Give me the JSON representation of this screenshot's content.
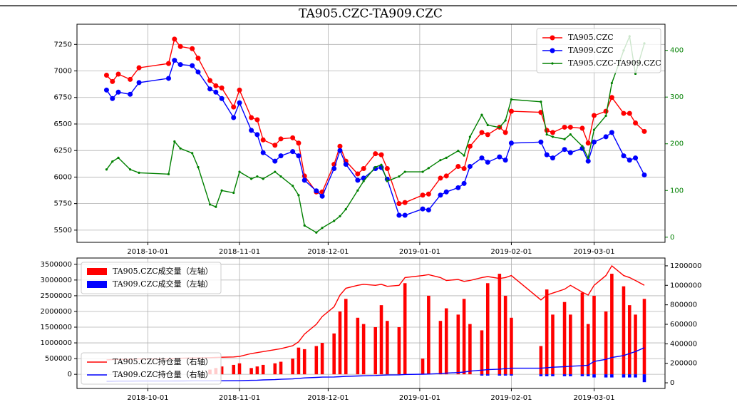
{
  "chart_data": [
    {
      "type": "line",
      "title": "TA905.CZC-TA909.CZC",
      "x": [
        "2018-09-17",
        "2018-09-19",
        "2018-09-21",
        "2018-09-25",
        "2018-09-28",
        "2018-10-08",
        "2018-10-10",
        "2018-10-12",
        "2018-10-16",
        "2018-10-18",
        "2018-10-22",
        "2018-10-24",
        "2018-10-26",
        "2018-10-30",
        "2018-11-01",
        "2018-11-05",
        "2018-11-07",
        "2018-11-09",
        "2018-11-13",
        "2018-11-15",
        "2018-11-19",
        "2018-11-21",
        "2018-11-23",
        "2018-11-27",
        "2018-11-29",
        "2018-12-03",
        "2018-12-05",
        "2018-12-07",
        "2018-12-11",
        "2018-12-13",
        "2018-12-17",
        "2018-12-19",
        "2018-12-21",
        "2018-12-25",
        "2018-12-27",
        "2019-01-02",
        "2019-01-04",
        "2019-01-08",
        "2019-01-10",
        "2019-01-14",
        "2019-01-16",
        "2019-01-18",
        "2019-01-22",
        "2019-01-24",
        "2019-01-28",
        "2019-01-30",
        "2019-02-01",
        "2019-02-11",
        "2019-02-13",
        "2019-02-15",
        "2019-02-19",
        "2019-02-21",
        "2019-02-25",
        "2019-02-27",
        "2019-03-01",
        "2019-03-05",
        "2019-03-07",
        "2019-03-11",
        "2019-03-13",
        "2019-03-15",
        "2019-03-18"
      ],
      "series": [
        {
          "name": "TA905.CZC",
          "color": "#ff0000",
          "axis": "y",
          "marker": 3.5,
          "values": [
            6960,
            6900,
            6970,
            6920,
            7030,
            7070,
            7300,
            7230,
            7210,
            7120,
            6910,
            6860,
            6840,
            6660,
            6820,
            6560,
            6540,
            6350,
            6300,
            6360,
            6370,
            6320,
            6010,
            5860,
            5860,
            6120,
            6290,
            6150,
            6030,
            6080,
            6220,
            6210,
            6080,
            5750,
            5760,
            5830,
            5840,
            5990,
            6010,
            6100,
            6080,
            6290,
            6420,
            6400,
            6470,
            6420,
            6620,
            6610,
            6440,
            6420,
            6470,
            6470,
            6460,
            6320,
            6580,
            6620,
            6750,
            6600,
            6600,
            6510,
            6430
          ]
        },
        {
          "name": "TA909.CZC",
          "color": "#0000ff",
          "axis": "y",
          "marker": 3.5,
          "values": [
            6820,
            6740,
            6800,
            6780,
            6890,
            6930,
            7100,
            7060,
            7050,
            6990,
            6830,
            6800,
            6740,
            6560,
            6700,
            6440,
            6400,
            6230,
            6150,
            6200,
            6240,
            6200,
            5970,
            5870,
            5820,
            6080,
            6250,
            6120,
            5970,
            5990,
            6080,
            6090,
            5980,
            5640,
            5640,
            5700,
            5690,
            5830,
            5860,
            5900,
            5940,
            6100,
            6180,
            6140,
            6190,
            6160,
            6320,
            6330,
            6210,
            6180,
            6260,
            6230,
            6270,
            6150,
            6330,
            6380,
            6420,
            6200,
            6160,
            6180,
            6020
          ]
        },
        {
          "name": "TA905.CZC-TA909.CZC",
          "color": "#008000",
          "axis": "y2",
          "marker": 1.6,
          "values": [
            145,
            162,
            170,
            145,
            138,
            135,
            205,
            190,
            180,
            150,
            70,
            65,
            100,
            95,
            140,
            125,
            130,
            125,
            140,
            130,
            110,
            90,
            25,
            10,
            20,
            35,
            45,
            60,
            100,
            120,
            150,
            155,
            120,
            130,
            140,
            140,
            148,
            165,
            170,
            185,
            175,
            215,
            262,
            240,
            235,
            250,
            295,
            290,
            220,
            215,
            210,
            220,
            195,
            170,
            230,
            260,
            330,
            400,
            430,
            350,
            415
          ]
        }
      ],
      "xlim": [
        "2018-09-07",
        "2019-03-25"
      ],
      "xticks": [
        "2018-10-01",
        "2018-11-01",
        "2018-12-01",
        "2019-01-01",
        "2019-02-01",
        "2019-03-01"
      ],
      "ylim": [
        5385,
        7440
      ],
      "yticks": [
        5500,
        5750,
        6000,
        6250,
        6500,
        6750,
        7000,
        7250
      ],
      "y2lim": [
        -11,
        456
      ],
      "y2ticks": [
        0,
        100,
        200,
        300,
        400
      ],
      "y2color": "#008000",
      "grid": true,
      "legend": [
        "upper right"
      ]
    },
    {
      "type": "bar",
      "x": [
        "2018-09-17",
        "2018-09-19",
        "2018-09-21",
        "2018-09-25",
        "2018-09-28",
        "2018-10-08",
        "2018-10-10",
        "2018-10-12",
        "2018-10-16",
        "2018-10-18",
        "2018-10-22",
        "2018-10-24",
        "2018-10-26",
        "2018-10-30",
        "2018-11-01",
        "2018-11-05",
        "2018-11-07",
        "2018-11-09",
        "2018-11-13",
        "2018-11-15",
        "2018-11-19",
        "2018-11-21",
        "2018-11-23",
        "2018-11-27",
        "2018-11-29",
        "2018-12-03",
        "2018-12-05",
        "2018-12-07",
        "2018-12-11",
        "2018-12-13",
        "2018-12-17",
        "2018-12-19",
        "2018-12-21",
        "2018-12-25",
        "2018-12-27",
        "2019-01-02",
        "2019-01-04",
        "2019-01-08",
        "2019-01-10",
        "2019-01-14",
        "2019-01-16",
        "2019-01-18",
        "2019-01-22",
        "2019-01-24",
        "2019-01-28",
        "2019-01-30",
        "2019-02-01",
        "2019-02-11",
        "2019-02-13",
        "2019-02-15",
        "2019-02-19",
        "2019-02-21",
        "2019-02-25",
        "2019-02-27",
        "2019-03-01",
        "2019-03-05",
        "2019-03-07",
        "2019-03-11",
        "2019-03-13",
        "2019-03-15",
        "2019-03-18"
      ],
      "series": [
        {
          "name": "TA905.CZC成交量（左轴）",
          "color": "#ff0000",
          "type": "bar",
          "axis": "y",
          "values": [
            0,
            0,
            0,
            0,
            0,
            0,
            0,
            0,
            0,
            0,
            150000,
            200000,
            250000,
            300000,
            350000,
            200000,
            250000,
            300000,
            350000,
            400000,
            500000,
            850000,
            800000,
            900000,
            1000000,
            1300000,
            2000000,
            2400000,
            1800000,
            1600000,
            1500000,
            2200000,
            1700000,
            1500000,
            2900000,
            500000,
            2500000,
            1700000,
            2100000,
            1900000,
            2400000,
            1600000,
            1400000,
            2900000,
            3200000,
            2500000,
            1800000,
            900000,
            2700000,
            1900000,
            2300000,
            1900000,
            2600000,
            1600000,
            2500000,
            2000000,
            3200000,
            2800000,
            2200000,
            1900000,
            2400000
          ]
        },
        {
          "name": "TA909.CZC成交量（左轴）",
          "color": "#0000ff",
          "type": "bar",
          "axis": "y",
          "values": [
            0,
            0,
            0,
            0,
            0,
            0,
            0,
            0,
            0,
            0,
            0,
            0,
            0,
            0,
            0,
            0,
            0,
            0,
            0,
            0,
            0,
            0,
            0,
            0,
            0,
            0,
            0,
            0,
            0,
            0,
            0,
            0,
            0,
            0,
            0,
            0,
            0,
            0,
            0,
            0,
            0,
            0,
            -40000,
            -40000,
            -40000,
            -40000,
            -40000,
            -60000,
            -60000,
            -60000,
            -60000,
            -60000,
            -60000,
            -60000,
            -100000,
            -100000,
            -100000,
            -100000,
            -100000,
            -100000,
            -250000
          ]
        },
        {
          "name": "TA905.CZC持仓量（右轴）",
          "color": "#ff0000",
          "type": "line",
          "axis": "y2",
          "values": [
            235000,
            238000,
            240000,
            242000,
            245000,
            245000,
            250000,
            252000,
            255000,
            255000,
            258000,
            260000,
            262000,
            265000,
            270000,
            300000,
            310000,
            320000,
            340000,
            350000,
            380000,
            420000,
            500000,
            600000,
            680000,
            780000,
            900000,
            970000,
            1000000,
            1010000,
            1000000,
            1010000,
            990000,
            1000000,
            1080000,
            1100000,
            1110000,
            1080000,
            1050000,
            1060000,
            1040000,
            1050000,
            1080000,
            1090000,
            1070000,
            1080000,
            1100000,
            850000,
            900000,
            920000,
            960000,
            1000000,
            930000,
            900000,
            1000000,
            1100000,
            1200000,
            1100000,
            1080000,
            1050000,
            1000000
          ]
        },
        {
          "name": "TA909.CZC持仓量（右轴）",
          "color": "#0000ff",
          "type": "line",
          "axis": "y2",
          "values": [
            15000,
            16000,
            17000,
            17000,
            18000,
            18000,
            19000,
            19000,
            20000,
            20000,
            20000,
            21000,
            21000,
            22000,
            22000,
            25000,
            27000,
            30000,
            33000,
            36000,
            40000,
            45000,
            50000,
            55000,
            58000,
            60000,
            63000,
            66000,
            70000,
            72000,
            75000,
            78000,
            80000,
            82000,
            85000,
            88000,
            90000,
            95000,
            100000,
            105000,
            110000,
            120000,
            130000,
            135000,
            140000,
            145000,
            150000,
            150000,
            155000,
            160000,
            165000,
            170000,
            175000,
            180000,
            220000,
            240000,
            260000,
            280000,
            300000,
            320000,
            360000
          ]
        }
      ],
      "xlim": [
        "2018-09-07",
        "2019-03-25"
      ],
      "xticks": [
        "2018-10-01",
        "2018-11-01",
        "2018-12-01",
        "2019-01-01",
        "2019-02-01",
        "2019-03-01"
      ],
      "ylim": [
        -450000,
        3700000
      ],
      "yticks": [
        0,
        500000,
        1000000,
        1500000,
        2000000,
        2500000,
        3000000,
        3500000
      ],
      "y2lim": [
        -58000,
        1280000
      ],
      "y2ticks": [
        0,
        200000,
        400000,
        600000,
        800000,
        1000000,
        1200000
      ],
      "grid": true,
      "legend": [
        "upper left",
        "lower left"
      ]
    }
  ]
}
